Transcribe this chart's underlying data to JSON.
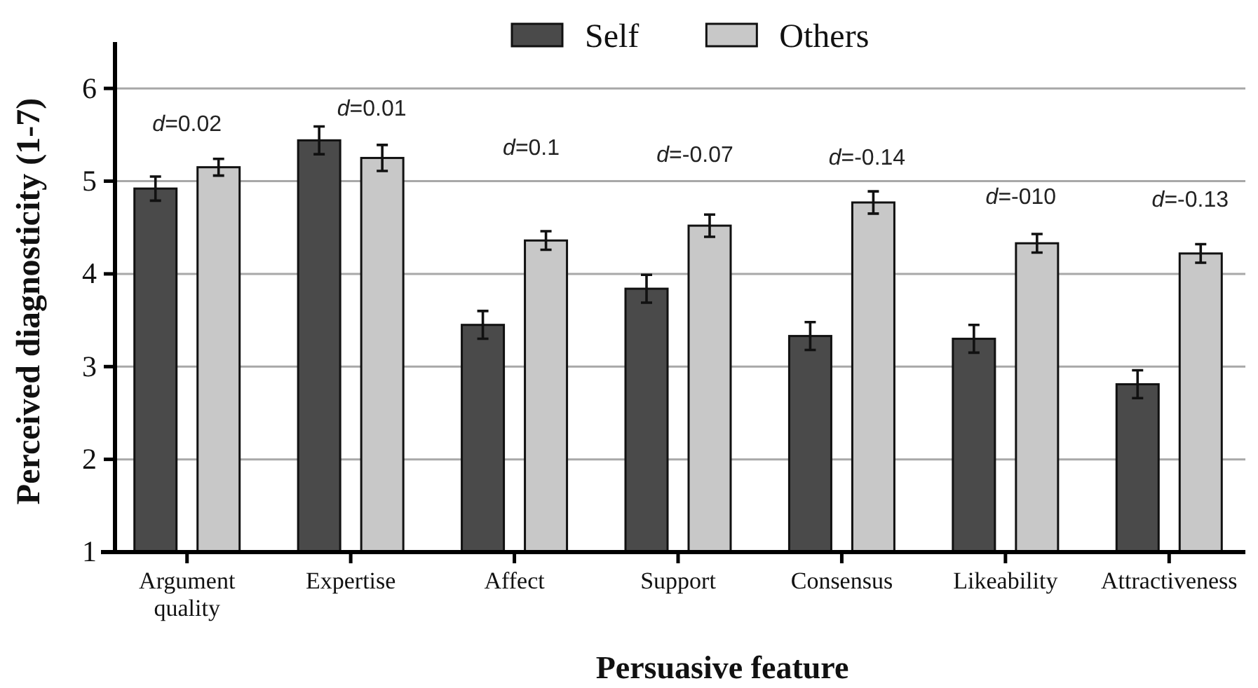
{
  "chart_data": {
    "type": "bar",
    "xlabel": "Persuasive feature",
    "ylabel": "Perceived diagnosticity (1-7)",
    "categories": [
      "Argument quality",
      "Expertise",
      "Affect",
      "Support",
      "Consensus",
      "Likeability",
      "Attractiveness"
    ],
    "series": [
      {
        "name": "Self",
        "color": "#4a4a4a",
        "values": [
          4.92,
          5.44,
          3.45,
          3.84,
          3.33,
          3.3,
          2.81
        ],
        "errors": [
          0.13,
          0.15,
          0.15,
          0.15,
          0.15,
          0.15,
          0.15
        ]
      },
      {
        "name": "Others",
        "color": "#c8c8c8",
        "values": [
          5.15,
          5.25,
          4.36,
          4.52,
          4.77,
          4.33,
          4.22
        ],
        "errors": [
          0.09,
          0.14,
          0.1,
          0.12,
          0.12,
          0.1,
          0.1
        ]
      }
    ],
    "ylim": [
      1,
      6.5
    ],
    "yticks": [
      1,
      2,
      3,
      4,
      5,
      6
    ],
    "grid": "y",
    "legend": "top",
    "annotations": [
      "d=0.02",
      "d=0.01",
      "d=0.1",
      "d=-0.07",
      "d=-0.14",
      "d=-010",
      "d=-0.13"
    ]
  }
}
